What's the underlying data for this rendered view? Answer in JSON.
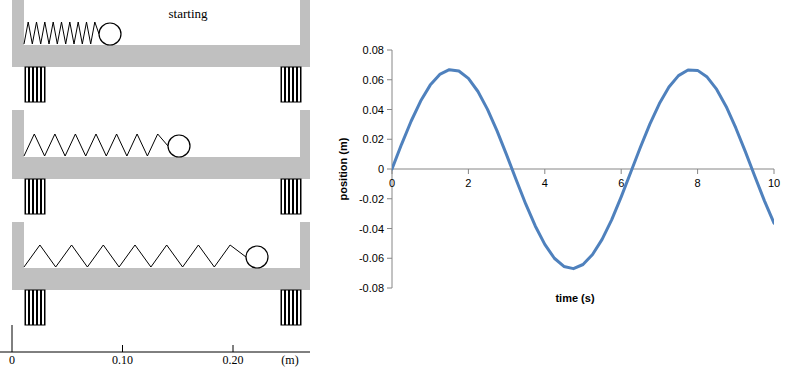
{
  "diagram": {
    "label": "starting",
    "scale": {
      "ticks": [
        {
          "value": 0,
          "label": "0"
        },
        {
          "value": 0.1,
          "label": "0.10"
        },
        {
          "value": 0.2,
          "label": "0.20"
        }
      ],
      "unit": "(m)"
    }
  },
  "chart_data": {
    "type": "line",
    "x_label": "time (s)",
    "y_label": "position (m)",
    "color": "#4f81bd",
    "xlim": [
      0,
      10
    ],
    "xticks": [
      0,
      2,
      4,
      6,
      8,
      10
    ],
    "ylim": [
      -0.08,
      0.08
    ],
    "yticks": [
      -0.08,
      -0.06,
      -0.04,
      -0.02,
      0,
      0.02,
      0.04,
      0.06,
      0.08
    ],
    "grid": false,
    "x": [
      0,
      0.25,
      0.5,
      0.75,
      1,
      1.25,
      1.5,
      1.75,
      2,
      2.25,
      2.5,
      2.75,
      3,
      3.25,
      3.5,
      3.75,
      4,
      4.25,
      4.5,
      4.75,
      5,
      5.25,
      5.5,
      5.75,
      6,
      6.25,
      6.5,
      6.75,
      7,
      7.25,
      7.5,
      7.75,
      8,
      8.25,
      8.5,
      8.75,
      9,
      9.25,
      9.5,
      9.75,
      10
    ],
    "values": [
      0,
      0.0166,
      0.0321,
      0.0457,
      0.0564,
      0.0636,
      0.0668,
      0.0659,
      0.0609,
      0.0521,
      0.0401,
      0.0256,
      0.0095,
      -0.0072,
      -0.0235,
      -0.0383,
      -0.0507,
      -0.06,
      -0.0655,
      -0.067,
      -0.0642,
      -0.0575,
      -0.0473,
      -0.0342,
      -0.0187,
      -0.0022,
      0.0144,
      0.0302,
      0.044,
      0.0551,
      0.0628,
      0.0666,
      0.0663,
      0.0618,
      0.0535,
      0.0419,
      0.0276,
      0.0117,
      -0.005,
      -0.0214,
      -0.0364
    ]
  }
}
